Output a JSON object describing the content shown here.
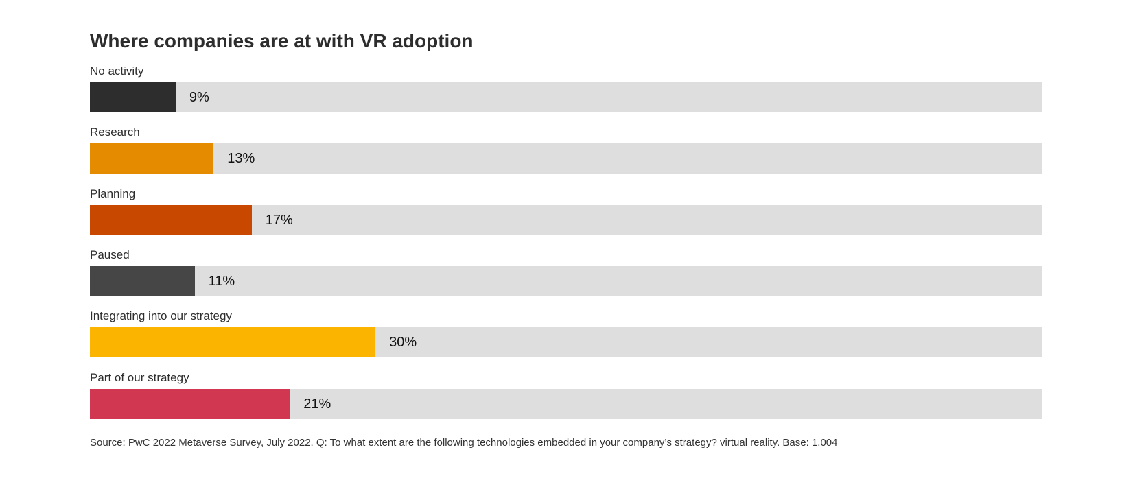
{
  "chart_data": {
    "type": "bar",
    "orientation": "horizontal",
    "title": "Where companies are at with VR adoption",
    "categories": [
      "No activity",
      "Research",
      "Planning",
      "Paused",
      "Integrating into our strategy",
      "Part of our strategy"
    ],
    "values": [
      9,
      13,
      17,
      11,
      30,
      21
    ],
    "value_labels": [
      "9%",
      "13%",
      "17%",
      "11%",
      "30%",
      "21%"
    ],
    "colors": [
      "#2d2d2d",
      "#e58b00",
      "#c84800",
      "#464646",
      "#fbb400",
      "#d13750"
    ],
    "track_color": "#dedede",
    "xlim": [
      0,
      100
    ],
    "grid": false,
    "source": "Source: PwC 2022 Metaverse Survey, July 2022. Q: To what extent are the following technologies embedded in your company’s strategy? virtual reality. Base: 1,004"
  }
}
